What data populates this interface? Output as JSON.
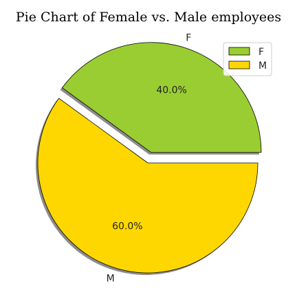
{
  "chart_data": {
    "type": "pie",
    "title": "Pie Chart of Female vs. Male employees",
    "slices": [
      {
        "label": "F",
        "value": 40,
        "pct_label": "40.0%",
        "color": "#9acd32",
        "explode": true
      },
      {
        "label": "M",
        "value": 60,
        "pct_label": "60.0%",
        "color": "#ffd700",
        "explode": false
      }
    ],
    "shadow": true,
    "legend": {
      "placement": "top-right",
      "entries": [
        "F",
        "M"
      ]
    }
  }
}
